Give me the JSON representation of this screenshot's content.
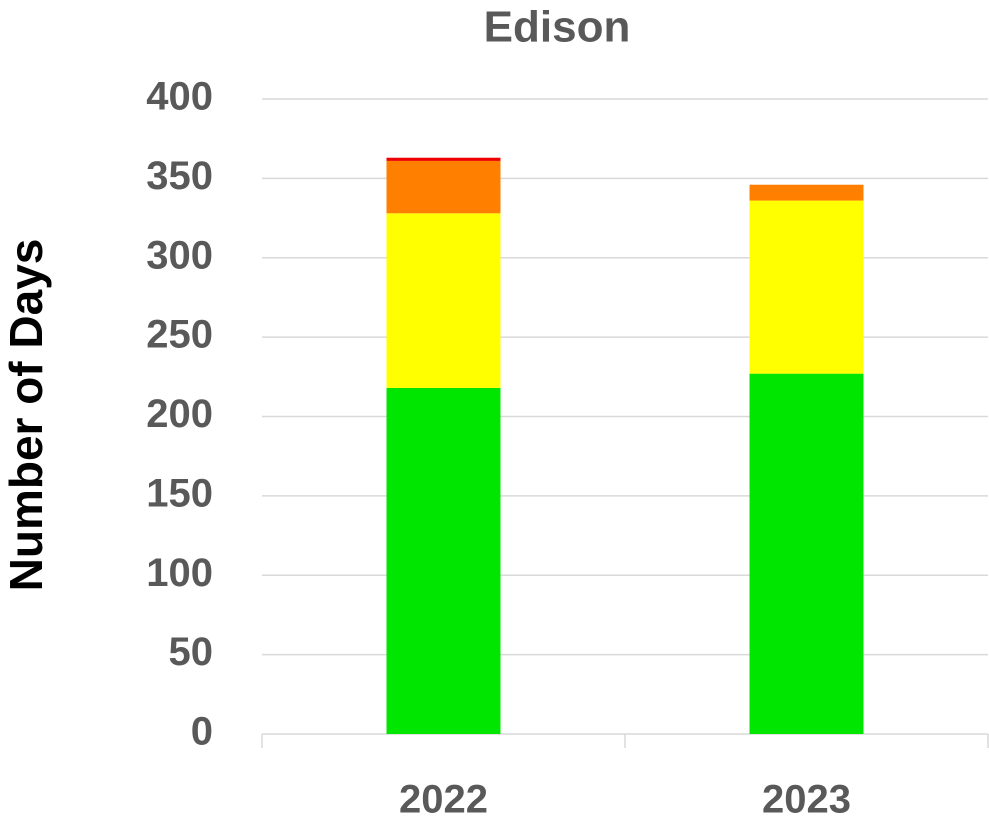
{
  "chart_data": {
    "type": "stacked_bar",
    "title": "Edison",
    "y_label": "Number of Days",
    "categories": [
      "2022",
      "2023"
    ],
    "series": [
      {
        "color": "#00e600",
        "values": [
          218,
          227
        ]
      },
      {
        "color": "#ffff00",
        "values": [
          110,
          109
        ]
      },
      {
        "color": "#ff8000",
        "values": [
          33,
          10
        ]
      },
      {
        "color": "#ee0000",
        "values": [
          2,
          0
        ]
      }
    ],
    "ylim": [
      0,
      400
    ],
    "yticks": [
      0,
      50,
      100,
      150,
      200,
      250,
      300,
      350,
      400
    ],
    "grid": true
  }
}
